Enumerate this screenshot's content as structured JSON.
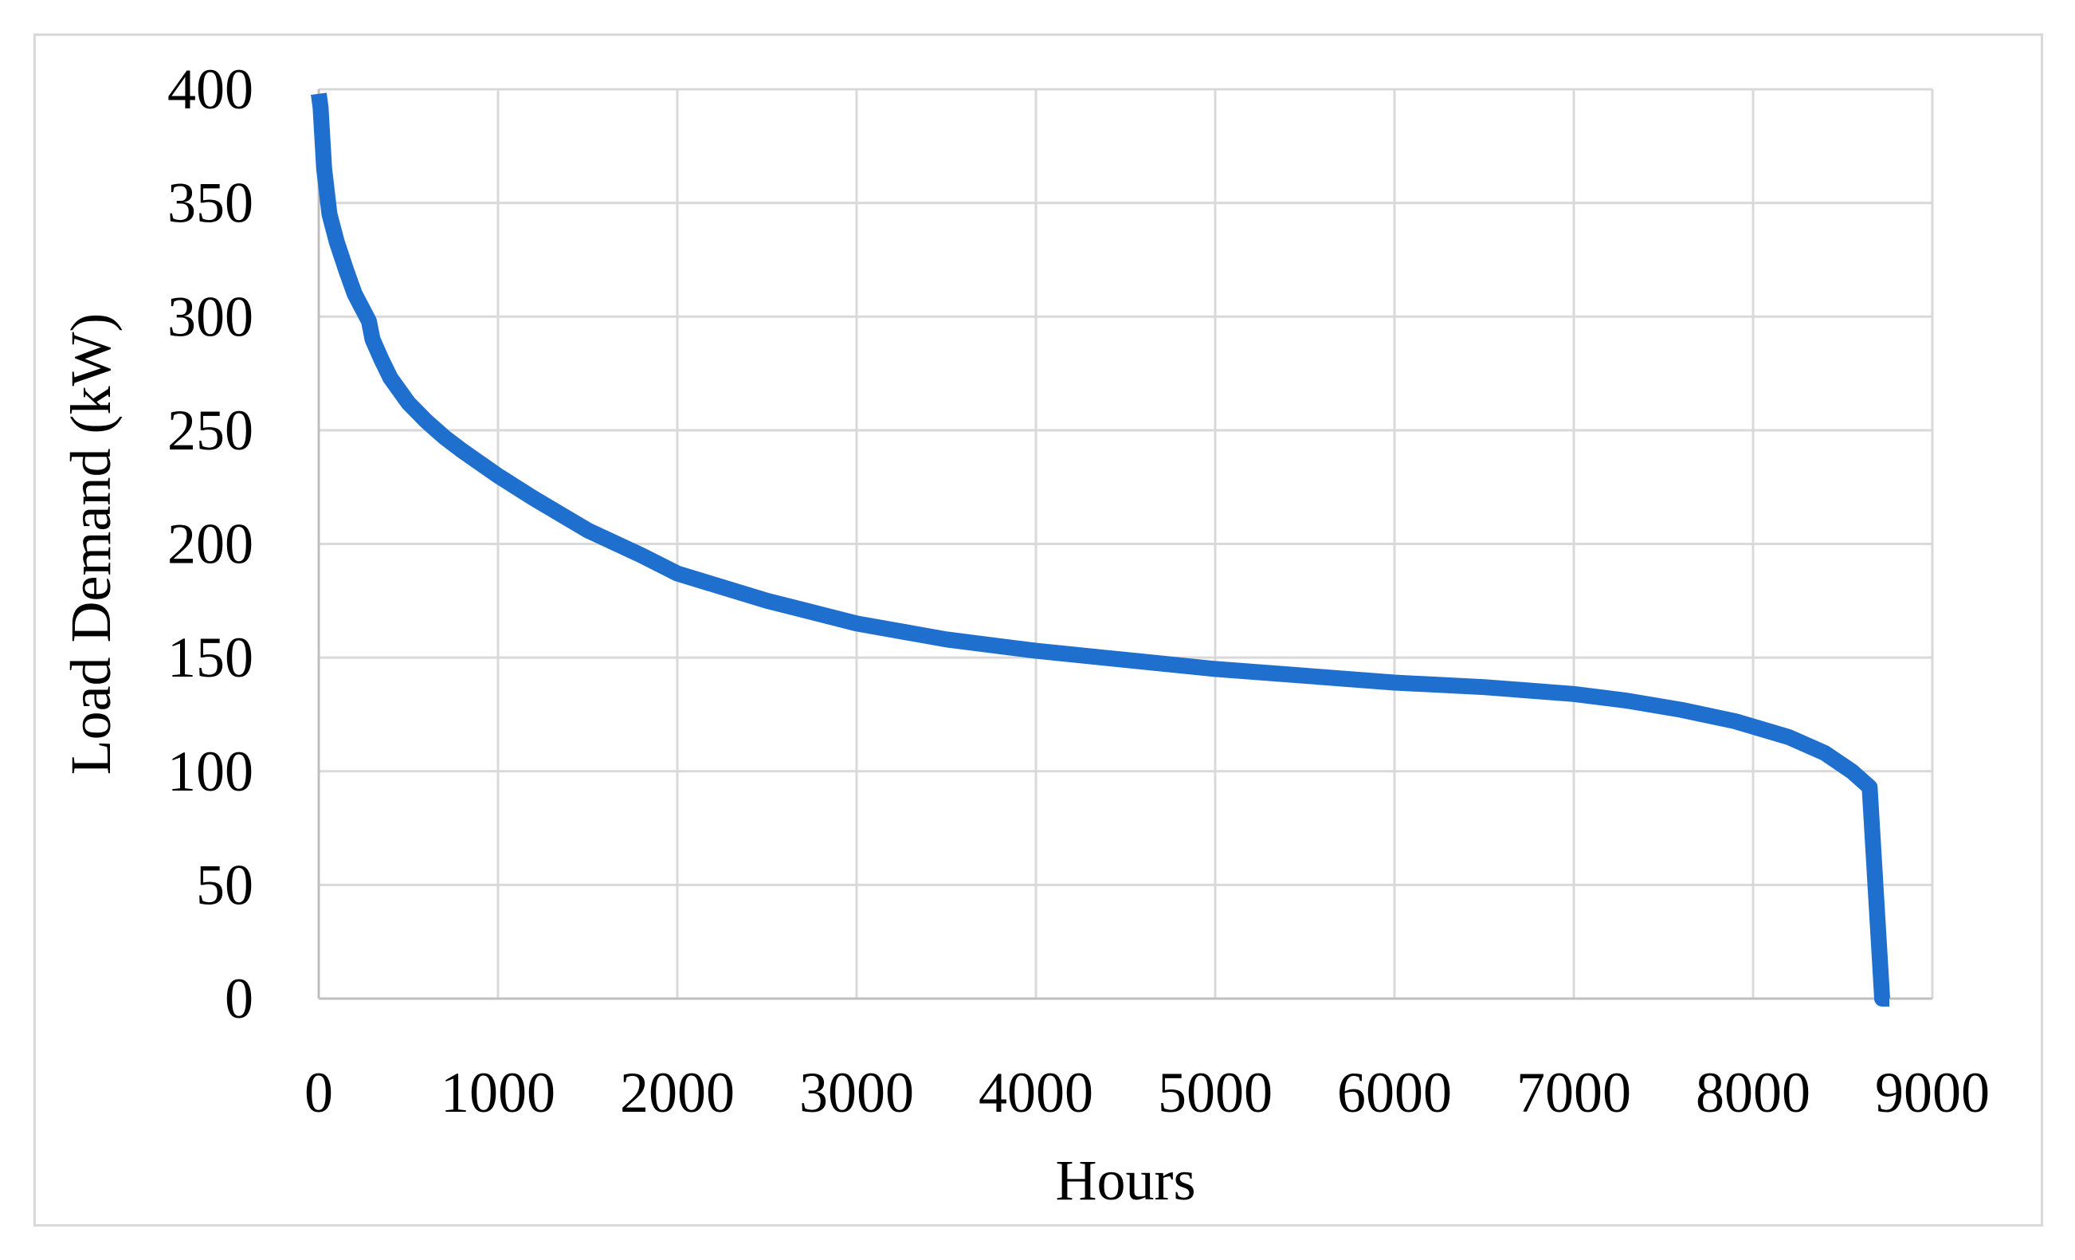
{
  "chart_data": {
    "type": "line",
    "title": "",
    "xlabel": "Hours",
    "ylabel": "Load Demand (kW)",
    "xlim": [
      0,
      9000
    ],
    "ylim": [
      0,
      400
    ],
    "xticks": [
      0,
      1000,
      2000,
      3000,
      4000,
      5000,
      6000,
      7000,
      8000,
      9000
    ],
    "yticks": [
      0,
      50,
      100,
      150,
      200,
      250,
      300,
      350,
      400
    ],
    "grid": true,
    "legend": "none",
    "series": [
      {
        "color": "#1f6fcf",
        "x": [
          0,
          10,
          30,
          60,
          100,
          150,
          200,
          280,
          300,
          350,
          400,
          500,
          600,
          700,
          800,
          1000,
          1200,
          1500,
          1800,
          2000,
          2500,
          3000,
          3500,
          4000,
          4500,
          5000,
          5500,
          6000,
          6500,
          7000,
          7300,
          7600,
          7900,
          8200,
          8400,
          8550,
          8650,
          8720,
          8740,
          8750,
          8760
        ],
        "y": [
          398,
          392,
          365,
          345,
          333,
          321,
          310,
          298,
          290,
          281,
          273,
          262,
          254,
          247,
          241,
          230,
          220,
          206,
          195,
          187,
          175,
          165,
          158,
          153,
          149,
          145,
          142,
          139,
          137,
          134,
          131,
          127,
          122,
          115,
          108,
          100,
          93,
          0,
          0,
          0,
          0
        ]
      }
    ]
  }
}
